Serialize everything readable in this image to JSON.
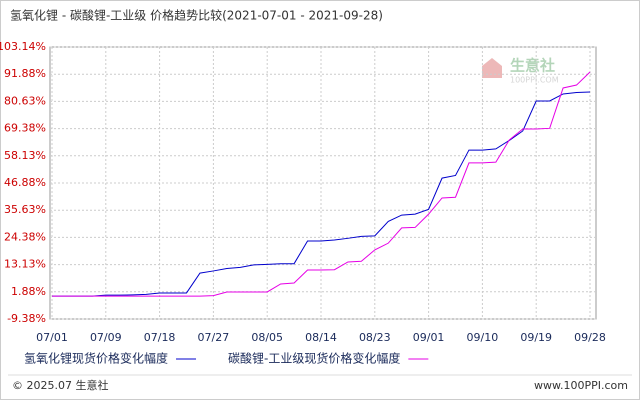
{
  "chart_data": {
    "type": "line",
    "title": "氢氧化锂 - 碳酸锂-工业级 价格趋势比较(2021-07-01 - 2021-09-28)",
    "x": [
      "07/01",
      "07/03",
      "07/05",
      "07/07",
      "07/09",
      "07/11",
      "07/13",
      "07/16",
      "07/18",
      "07/20",
      "07/22",
      "07/25",
      "07/27",
      "07/29",
      "07/31",
      "08/03",
      "08/05",
      "08/07",
      "08/09",
      "08/12",
      "08/14",
      "08/16",
      "08/18",
      "08/21",
      "08/23",
      "08/25",
      "08/27",
      "08/30",
      "09/01",
      "09/03",
      "09/05",
      "09/08",
      "09/10",
      "09/12",
      "09/14",
      "09/17",
      "09/19",
      "09/21",
      "09/23",
      "09/26",
      "09/28"
    ],
    "xticks": [
      "07/01",
      "07/09",
      "07/18",
      "07/27",
      "08/05",
      "08/14",
      "08/23",
      "09/01",
      "09/10",
      "09/19",
      "09/28"
    ],
    "series": [
      {
        "name": "氢氧化锂现货价格变化幅度",
        "color": "#0000cc",
        "values": [
          0.1,
          0.1,
          0.1,
          0.1,
          0.5,
          0.5,
          0.6,
          0.8,
          1.4,
          1.4,
          1.4,
          9.6,
          10.5,
          11.5,
          12,
          13,
          13.2,
          13.5,
          13.5,
          22.9,
          22.9,
          23.3,
          24,
          24.8,
          25,
          31,
          33.6,
          34,
          36,
          48.9,
          50,
          60.5,
          60.5,
          61,
          64.5,
          68.4,
          80.8,
          80.8,
          83.7,
          84.3,
          84.5
        ]
      },
      {
        "name": "碳酸锂-工业级现货价格变化幅度",
        "color": "#e600e6",
        "values": [
          0.1,
          0.1,
          0.1,
          0.1,
          0.1,
          0.1,
          0.1,
          0.1,
          0.1,
          0.1,
          0.1,
          0.1,
          0.3,
          1.8,
          1.8,
          1.8,
          1.8,
          5.1,
          5.5,
          10.9,
          10.9,
          11,
          14.2,
          14.5,
          19.2,
          22,
          28.3,
          28.5,
          34,
          40.7,
          41,
          55.2,
          55.2,
          55.5,
          64.7,
          69.2,
          69.2,
          69.5,
          86.2,
          87.4,
          92.8
        ]
      }
    ],
    "ylim": [
      -9.38,
      103.14
    ],
    "yticks": [
      {
        "value": -9.38,
        "label": "-9.38%"
      },
      {
        "value": 1.88,
        "label": "1.88%"
      },
      {
        "value": 13.13,
        "label": "13.13%"
      },
      {
        "value": 24.38,
        "label": "24.38%"
      },
      {
        "value": 35.63,
        "label": "35.63%"
      },
      {
        "value": 46.88,
        "label": "46.88%"
      },
      {
        "value": 58.13,
        "label": "58.13%"
      },
      {
        "value": 69.38,
        "label": "69.38%"
      },
      {
        "value": 80.63,
        "label": "80.63%"
      },
      {
        "value": 91.88,
        "label": "91.88%"
      },
      {
        "value": 103.14,
        "label": "103.14%"
      }
    ],
    "grid": true,
    "watermark": {
      "name": "生意社",
      "site": "100PPI.COM"
    },
    "footer": {
      "left": "© 2025.07 生意社",
      "right": "www.100PPI.com"
    }
  }
}
